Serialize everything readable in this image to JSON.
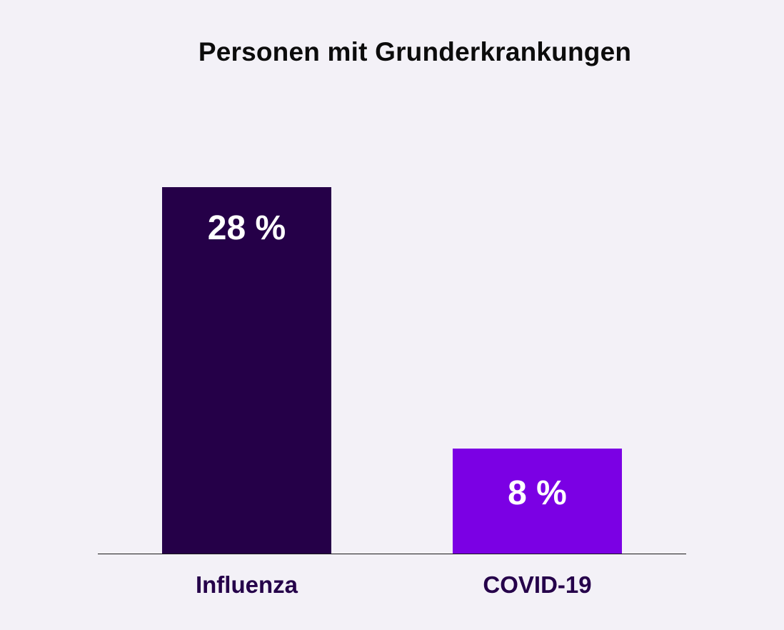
{
  "chart_data": {
    "type": "bar",
    "title": "Personen mit Grunderkrankungen",
    "categories": [
      "Influenza",
      "COVID-19"
    ],
    "values": [
      28,
      8
    ],
    "value_labels": [
      "28 %",
      "8 %"
    ],
    "unit": "%",
    "colors": [
      "#250048",
      "#7b00e4"
    ],
    "xlabel": "",
    "ylabel": "",
    "ylim": [
      0,
      30
    ],
    "grid": false,
    "legend": null
  },
  "colors": {
    "background": "#f3f1f7",
    "title": "#0c0c0c",
    "category_label": "#25004a",
    "value_label": "#ffffff"
  }
}
